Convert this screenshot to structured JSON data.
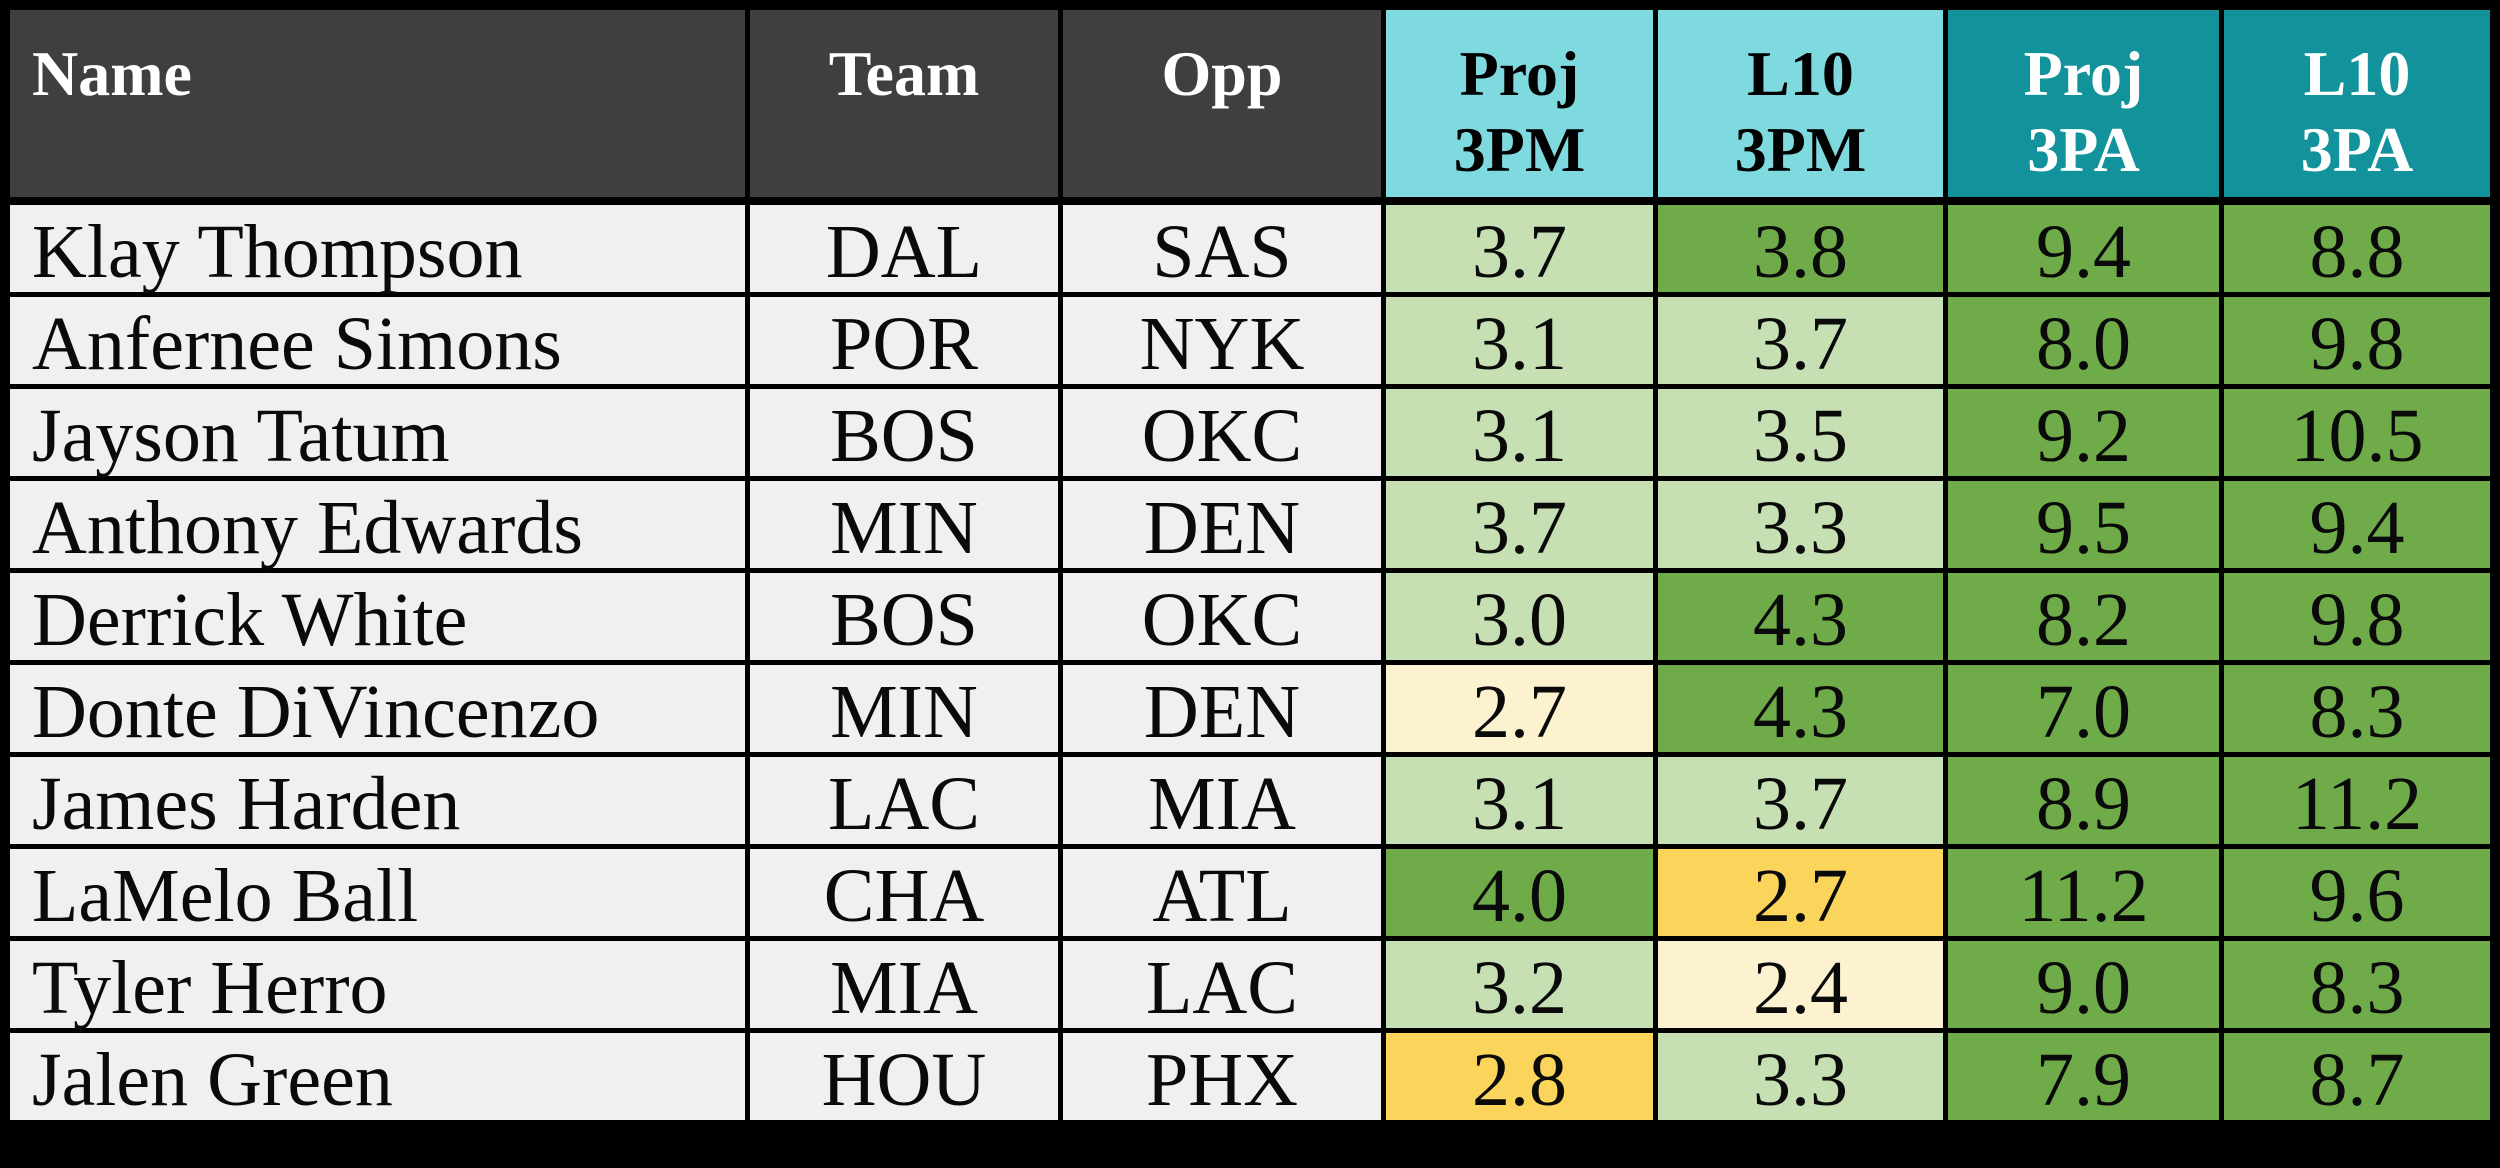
{
  "chart_data": {
    "type": "table",
    "title": "",
    "columns": [
      "Name",
      "Team",
      "Opp",
      "Proj 3PM",
      "L10 3PM",
      "Proj 3PA",
      "L10 3PA"
    ],
    "rows": [
      [
        "Klay Thompson",
        "DAL",
        "SAS",
        3.7,
        3.8,
        9.4,
        8.8
      ],
      [
        "Anfernee Simons",
        "POR",
        "NYK",
        3.1,
        3.7,
        8.0,
        9.8
      ],
      [
        "Jayson Tatum",
        "BOS",
        "OKC",
        3.1,
        3.5,
        9.2,
        10.5
      ],
      [
        "Anthony Edwards",
        "MIN",
        "DEN",
        3.7,
        3.3,
        9.5,
        9.4
      ],
      [
        "Derrick White",
        "BOS",
        "OKC",
        3.0,
        4.3,
        8.2,
        9.8
      ],
      [
        "Donte DiVincenzo",
        "MIN",
        "DEN",
        2.7,
        4.3,
        7.0,
        8.3
      ],
      [
        "James Harden",
        "LAC",
        "MIA",
        3.1,
        3.7,
        8.9,
        11.2
      ],
      [
        "LaMelo Ball",
        "CHA",
        "ATL",
        4.0,
        2.7,
        11.2,
        9.6
      ],
      [
        "Tyler Herro",
        "MIA",
        "LAC",
        3.2,
        2.4,
        9.0,
        8.3
      ],
      [
        "Jalen Green",
        "HOU",
        "PHX",
        2.8,
        3.3,
        7.9,
        8.7
      ]
    ]
  },
  "colors": {
    "headerDark": "#3f3f3f",
    "headerCyan": "#7edade",
    "headerTeal": "#12929b",
    "rowBg": "#f0f0f0",
    "lightGreen": "#c6e0b4",
    "green": "#6fab49",
    "cream": "#fdf2cf",
    "gold": "#fbd45c",
    "gridLine": "#000000"
  },
  "table": {
    "columns": [
      {
        "id": "name",
        "label": "Name",
        "header_bg": "dark",
        "align": "left"
      },
      {
        "id": "team",
        "label": "Team",
        "header_bg": "dark"
      },
      {
        "id": "opp",
        "label": "Opp",
        "header_bg": "dark"
      },
      {
        "id": "proj-3pm",
        "label": "Proj\n3PM",
        "header_bg": "cyan"
      },
      {
        "id": "l10-3pm",
        "label": "L10\n3PM",
        "header_bg": "cyan"
      },
      {
        "id": "proj-3pa",
        "label": "Proj\n3PA",
        "header_bg": "teal"
      },
      {
        "id": "l10-3pa",
        "label": "L10\n3PA",
        "header_bg": "teal"
      }
    ],
    "rows": [
      {
        "name": "Klay Thompson",
        "team": "DAL",
        "opp": "SAS",
        "stats": [
          {
            "value": "3.7",
            "color": "lightGreen"
          },
          {
            "value": "3.8",
            "color": "green"
          },
          {
            "value": "9.4",
            "color": "green"
          },
          {
            "value": "8.8",
            "color": "green"
          }
        ]
      },
      {
        "name": "Anfernee Simons",
        "team": "POR",
        "opp": "NYK",
        "stats": [
          {
            "value": "3.1",
            "color": "lightGreen"
          },
          {
            "value": "3.7",
            "color": "lightGreen"
          },
          {
            "value": "8.0",
            "color": "green"
          },
          {
            "value": "9.8",
            "color": "green"
          }
        ]
      },
      {
        "name": "Jayson Tatum",
        "team": "BOS",
        "opp": "OKC",
        "stats": [
          {
            "value": "3.1",
            "color": "lightGreen"
          },
          {
            "value": "3.5",
            "color": "lightGreen"
          },
          {
            "value": "9.2",
            "color": "green"
          },
          {
            "value": "10.5",
            "color": "green"
          }
        ]
      },
      {
        "name": "Anthony Edwards",
        "team": "MIN",
        "opp": "DEN",
        "stats": [
          {
            "value": "3.7",
            "color": "lightGreen"
          },
          {
            "value": "3.3",
            "color": "lightGreen"
          },
          {
            "value": "9.5",
            "color": "green"
          },
          {
            "value": "9.4",
            "color": "green"
          }
        ]
      },
      {
        "name": "Derrick White",
        "team": "BOS",
        "opp": "OKC",
        "stats": [
          {
            "value": "3.0",
            "color": "lightGreen"
          },
          {
            "value": "4.3",
            "color": "green"
          },
          {
            "value": "8.2",
            "color": "green"
          },
          {
            "value": "9.8",
            "color": "green"
          }
        ]
      },
      {
        "name": "Donte DiVincenzo",
        "team": "MIN",
        "opp": "DEN",
        "stats": [
          {
            "value": "2.7",
            "color": "cream"
          },
          {
            "value": "4.3",
            "color": "green"
          },
          {
            "value": "7.0",
            "color": "green"
          },
          {
            "value": "8.3",
            "color": "green"
          }
        ]
      },
      {
        "name": "James Harden",
        "team": "LAC",
        "opp": "MIA",
        "stats": [
          {
            "value": "3.1",
            "color": "lightGreen"
          },
          {
            "value": "3.7",
            "color": "lightGreen"
          },
          {
            "value": "8.9",
            "color": "green"
          },
          {
            "value": "11.2",
            "color": "green"
          }
        ]
      },
      {
        "name": "LaMelo Ball",
        "team": "CHA",
        "opp": "ATL",
        "stats": [
          {
            "value": "4.0",
            "color": "green"
          },
          {
            "value": "2.7",
            "color": "gold"
          },
          {
            "value": "11.2",
            "color": "green"
          },
          {
            "value": "9.6",
            "color": "green"
          }
        ]
      },
      {
        "name": "Tyler Herro",
        "team": "MIA",
        "opp": "LAC",
        "stats": [
          {
            "value": "3.2",
            "color": "lightGreen"
          },
          {
            "value": "2.4",
            "color": "cream"
          },
          {
            "value": "9.0",
            "color": "green"
          },
          {
            "value": "8.3",
            "color": "green"
          }
        ]
      },
      {
        "name": "Jalen Green",
        "team": "HOU",
        "opp": "PHX",
        "stats": [
          {
            "value": "2.8",
            "color": "gold"
          },
          {
            "value": "3.3",
            "color": "lightGreen"
          },
          {
            "value": "7.9",
            "color": "green"
          },
          {
            "value": "8.7",
            "color": "green"
          }
        ]
      }
    ]
  }
}
